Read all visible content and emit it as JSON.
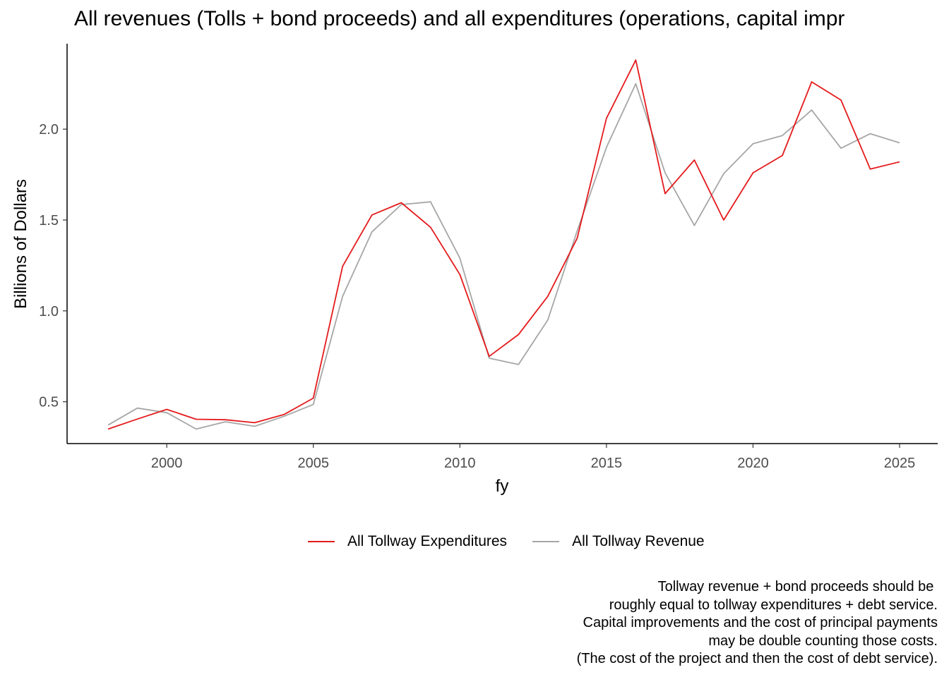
{
  "chart_data": {
    "type": "line",
    "title": "All revenues (Tolls + bond proceeds) and all expenditures (operations, capital impr",
    "xlabel": "fy",
    "ylabel": "Billions of Dollars",
    "x": [
      1998,
      1999,
      2000,
      2001,
      2002,
      2003,
      2004,
      2005,
      2006,
      2007,
      2008,
      2009,
      2010,
      2011,
      2012,
      2013,
      2014,
      2015,
      2016,
      2017,
      2018,
      2019,
      2020,
      2021,
      2022,
      2023,
      2024,
      2025
    ],
    "xlim": [
      1996.6,
      2026.3
    ],
    "ylim": [
      0.27,
      2.47
    ],
    "x_ticks": [
      2000,
      2005,
      2010,
      2015,
      2020,
      2025
    ],
    "y_ticks": [
      0.5,
      1.0,
      1.5,
      2.0
    ],
    "y_tick_labels": [
      "0.5",
      "1.0",
      "1.5",
      "2.0"
    ],
    "grid": false,
    "legend_position": "bottom",
    "series": [
      {
        "name": "All Tollway Expenditures",
        "color": "#e41a1c",
        "values": [
          0.35,
          0.405,
          0.458,
          0.404,
          0.401,
          0.385,
          0.43,
          0.52,
          1.245,
          1.528,
          1.595,
          1.46,
          1.2,
          0.75,
          0.87,
          1.08,
          1.4,
          2.06,
          2.38,
          1.645,
          1.83,
          1.5,
          1.76,
          1.855,
          2.26,
          2.16,
          1.78,
          1.82
        ]
      },
      {
        "name": "All Tollway Revenue",
        "color": "#a6a6a6",
        "values": [
          0.372,
          0.465,
          0.44,
          0.35,
          0.39,
          0.365,
          0.42,
          0.485,
          1.08,
          1.435,
          1.585,
          1.6,
          1.29,
          0.74,
          0.705,
          0.95,
          1.44,
          1.9,
          2.25,
          1.76,
          1.47,
          1.755,
          1.92,
          1.965,
          2.105,
          1.895,
          1.975,
          1.925
        ]
      }
    ]
  },
  "caption": {
    "lines": [
      "Tollway revenue + bond proceeds should be ",
      "roughly equal to tollway expenditures + debt service.",
      "Capital improvements and the cost of principal payments",
      "may be double counting those costs.",
      "(The cost of the project and then the cost of debt service)."
    ]
  }
}
